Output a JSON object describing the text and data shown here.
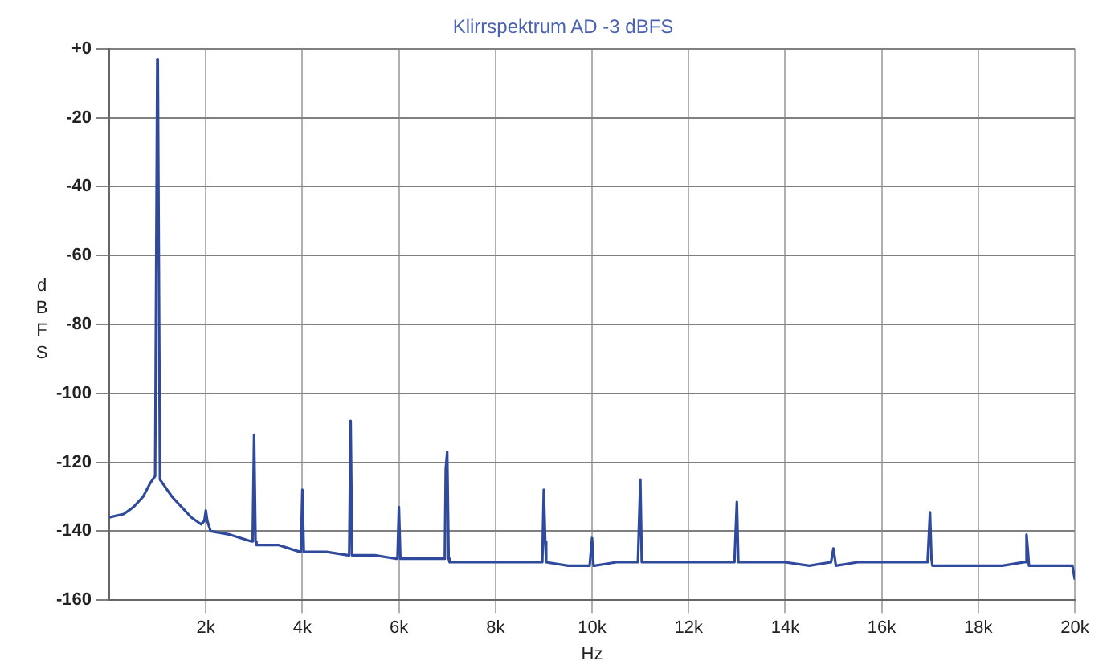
{
  "chart_data": {
    "type": "line",
    "title": "Klirrspektrum AD -3 dBFS",
    "xlabel": "Hz",
    "ylabel": "dBFS",
    "series": [
      {
        "color": "#2f4a9c",
        "x": [
          0,
          300,
          500,
          700,
          850,
          950,
          995,
          1005,
          1050,
          1100,
          1300,
          1500,
          1700,
          1900,
          1970,
          2000,
          2030,
          2100,
          2500,
          2950,
          2970,
          3000,
          3030,
          3050,
          3500,
          3950,
          3970,
          4000,
          4030,
          4050,
          4500,
          4950,
          4970,
          5000,
          5030,
          5050,
          5500,
          5950,
          5970,
          6000,
          6030,
          6050,
          6500,
          6950,
          6970,
          7000,
          7030,
          7050,
          7500,
          8000,
          8500,
          8950,
          8970,
          9000,
          9030,
          9050,
          9500,
          9950,
          9970,
          10000,
          10030,
          10050,
          10500,
          10950,
          10970,
          11000,
          11030,
          11050,
          11500,
          12000,
          12500,
          12950,
          12970,
          13000,
          13030,
          13050,
          13500,
          14000,
          14500,
          14950,
          14970,
          15000,
          15030,
          15050,
          15500,
          16000,
          16500,
          16950,
          16970,
          17000,
          17030,
          17050,
          17500,
          18000,
          18500,
          18950,
          18970,
          19000,
          19030,
          19050,
          19500,
          19950,
          20000
        ],
        "values": [
          -136,
          -135,
          -133,
          -130,
          -126,
          -124,
          -3,
          -3,
          -125,
          -126,
          -130,
          -133,
          -136,
          -138,
          -137,
          -134,
          -137,
          -140,
          -141,
          -143,
          -143,
          -112,
          -143,
          -144,
          -144,
          -146,
          -146,
          -128,
          -146,
          -146,
          -146,
          -147,
          -147,
          -108,
          -147,
          -147,
          -147,
          -148,
          -148,
          -133,
          -148,
          -148,
          -148,
          -148,
          -122,
          -117,
          -148,
          -149,
          -149,
          -149,
          -149,
          -149,
          -149,
          -128,
          -143,
          -149,
          -150,
          -150,
          -150,
          -142,
          -150,
          -150,
          -149,
          -149,
          -149,
          -125,
          -149,
          -149,
          -149,
          -149,
          -149,
          -149,
          -149,
          -131.5,
          -149,
          -149,
          -149,
          -149,
          -150,
          -149,
          -149,
          -145,
          -148,
          -150,
          -149,
          -149,
          -149,
          -149,
          -149,
          -134.5,
          -148,
          -150,
          -150,
          -150,
          -150,
          -149,
          -149,
          -141,
          -146,
          -150,
          -150,
          -150,
          -154
        ]
      }
    ],
    "xlim": [
      0,
      20000
    ],
    "xticks": [
      {
        "value": 2000,
        "label": "2k"
      },
      {
        "value": 4000,
        "label": "4k"
      },
      {
        "value": 6000,
        "label": "6k"
      },
      {
        "value": 8000,
        "label": "8k"
      },
      {
        "value": 10000,
        "label": "10k"
      },
      {
        "value": 12000,
        "label": "12k"
      },
      {
        "value": 14000,
        "label": "14k"
      },
      {
        "value": 16000,
        "label": "16k"
      },
      {
        "value": 18000,
        "label": "18k"
      },
      {
        "value": 20000,
        "label": "20k"
      }
    ],
    "ylim": [
      -160,
      0
    ],
    "yticks": [
      -160,
      -140,
      -120,
      -100,
      -80,
      -60,
      -40,
      -20,
      {
        "value": 0,
        "label": "+0"
      }
    ],
    "grid": true,
    "legend": false,
    "marker": "none",
    "line_style": "solid"
  }
}
